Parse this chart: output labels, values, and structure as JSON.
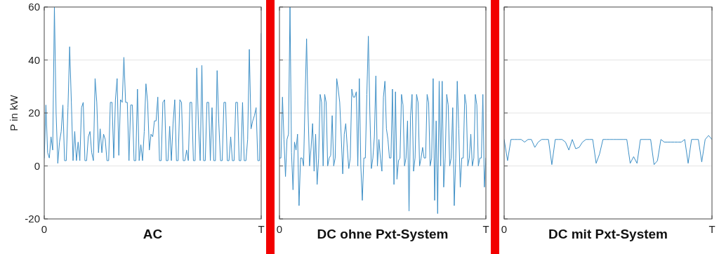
{
  "chart_data": [
    {
      "type": "line",
      "ylabel": "P in kW",
      "xlabel": "AC",
      "ylim": [
        -20,
        60
      ],
      "yticks": [
        -20,
        0,
        20,
        40,
        60
      ],
      "grid": true,
      "categories": [
        "0",
        null,
        null,
        null,
        null,
        null,
        null,
        null,
        null,
        null,
        null,
        null,
        null,
        null,
        null,
        null,
        null,
        null,
        null,
        null,
        null,
        null,
        null,
        null,
        null,
        null,
        null,
        null,
        null,
        null,
        null,
        null,
        null,
        null,
        null,
        null,
        null,
        null,
        null,
        null,
        null,
        null,
        null,
        null,
        null,
        null,
        null,
        null,
        null,
        null,
        null,
        null,
        null,
        null,
        null,
        null,
        null,
        null,
        null,
        null,
        null,
        null,
        null,
        null,
        null,
        null,
        null,
        null,
        null,
        null,
        null,
        null,
        null,
        null,
        null,
        null,
        null,
        null,
        null,
        null,
        null,
        null,
        null,
        null,
        null,
        null,
        null,
        null,
        null,
        null,
        null,
        null,
        null,
        null,
        null,
        null,
        null,
        null,
        null,
        null,
        null,
        null,
        null,
        null,
        null,
        null,
        null,
        null,
        null,
        null,
        null,
        null,
        null,
        null,
        null,
        null,
        null,
        null,
        null,
        null,
        null,
        null,
        null,
        null,
        null,
        null,
        null,
        null,
        "T"
      ],
      "series": [
        {
          "color": "#3d8fc6",
          "values": [
            3,
            23,
            5,
            3,
            11,
            6,
            60,
            20,
            1,
            9,
            13,
            23,
            2,
            2,
            22,
            45,
            24,
            2,
            13,
            2,
            9,
            2,
            22,
            24,
            2,
            2,
            11,
            13,
            5,
            2,
            33,
            24,
            5,
            14,
            5,
            12,
            10,
            2,
            2,
            24,
            24,
            3,
            25,
            33,
            4,
            25,
            24,
            41,
            24,
            24,
            2,
            23,
            23,
            2,
            2,
            29,
            2,
            8,
            2,
            13,
            31,
            24,
            6,
            12,
            11,
            17,
            17,
            26,
            2,
            2,
            24,
            25,
            2,
            2,
            15,
            2,
            16,
            25,
            2,
            2,
            25,
            24,
            2,
            2,
            6,
            2,
            24,
            24,
            2,
            2,
            37,
            15,
            2,
            38,
            2,
            2,
            24,
            24,
            2,
            22,
            2,
            2,
            36,
            16,
            2,
            2,
            24,
            24,
            2,
            2,
            11,
            2,
            2,
            24,
            24,
            2,
            2,
            24,
            2,
            2,
            10,
            44,
            14,
            17,
            19,
            22,
            2,
            2,
            50
          ]
        }
      ]
    },
    {
      "type": "line",
      "xlabel": "DC ohne Pxt-System",
      "ylim": [
        -20,
        60
      ],
      "yticks": [
        -20,
        0,
        20,
        40,
        60
      ],
      "grid": true,
      "tick_labels": "x",
      "categories": [
        "0",
        null,
        null,
        null,
        null,
        null,
        null,
        null,
        null,
        null,
        null,
        null,
        null,
        null,
        null,
        null,
        null,
        null,
        null,
        null,
        null,
        null,
        null,
        null,
        null,
        null,
        null,
        null,
        null,
        null,
        null,
        null,
        null,
        null,
        null,
        null,
        null,
        null,
        null,
        null,
        null,
        null,
        null,
        null,
        null,
        null,
        null,
        null,
        null,
        null,
        null,
        null,
        null,
        null,
        null,
        null,
        null,
        null,
        null,
        null,
        null,
        null,
        null,
        null,
        null,
        null,
        null,
        null,
        null,
        null,
        null,
        null,
        null,
        null,
        null,
        null,
        null,
        null,
        null,
        null,
        null,
        null,
        null,
        null,
        null,
        null,
        null,
        null,
        null,
        null,
        null,
        null,
        null,
        null,
        null,
        null,
        null,
        null,
        null,
        null,
        null,
        null,
        null,
        null,
        null,
        null,
        null,
        null,
        null,
        null,
        null,
        null,
        null,
        null,
        null,
        null,
        null,
        null,
        null,
        null,
        null,
        null,
        null,
        null,
        null,
        null,
        null,
        null,
        null,
        null,
        null,
        null,
        null,
        null,
        null,
        null,
        null,
        "T"
      ],
      "series": [
        {
          "color": "#3d8fc6",
          "values": [
            3,
            3,
            26,
            10,
            -4,
            10,
            12,
            60,
            5,
            -9,
            9,
            6,
            12,
            -15,
            3,
            3,
            0,
            25,
            48,
            20,
            0,
            7,
            16,
            -2,
            12,
            -7,
            3,
            27,
            24,
            0,
            27,
            24,
            0,
            3,
            4,
            19,
            0,
            3,
            33,
            29,
            24,
            11,
            -3,
            12,
            16,
            7,
            -1,
            3,
            29,
            26,
            26,
            28,
            0,
            33,
            0,
            -13,
            3,
            3,
            27,
            49,
            20,
            -1,
            3,
            11,
            34,
            0,
            10,
            3,
            -2,
            26,
            32,
            14,
            10,
            3,
            3,
            29,
            -7,
            28,
            -5,
            2,
            3,
            27,
            23,
            0,
            3,
            17,
            -17,
            19,
            27,
            -2,
            3,
            27,
            24,
            0,
            3,
            7,
            3,
            3,
            27,
            24,
            0,
            3,
            33,
            -13,
            17,
            -18,
            32,
            0,
            32,
            -8,
            3,
            27,
            23,
            0,
            3,
            22,
            -15,
            3,
            32,
            14,
            -8,
            3,
            3,
            27,
            23,
            0,
            3,
            12,
            0,
            3,
            27,
            23,
            0,
            3,
            3,
            27,
            -8,
            3
          ]
        }
      ]
    },
    {
      "type": "line",
      "xlabel": "DC mit Pxt-System",
      "ylim": [
        -20,
        60
      ],
      "yticks": [
        -20,
        0,
        20,
        40,
        60
      ],
      "grid": true,
      "tick_labels": "x",
      "categories": [
        "0",
        null,
        null,
        null,
        null,
        null,
        null,
        null,
        null,
        null,
        null,
        null,
        null,
        null,
        null,
        null,
        null,
        null,
        null,
        null,
        null,
        null,
        null,
        null,
        null,
        null,
        null,
        null,
        null,
        null,
        null,
        null,
        null,
        null,
        null,
        null,
        null,
        null,
        null,
        null,
        null,
        null,
        null,
        null,
        null,
        null,
        null,
        null,
        null,
        null,
        null,
        null,
        null,
        null,
        null,
        null,
        null,
        null,
        null,
        null,
        null,
        "T"
      ],
      "series": [
        {
          "color": "#3d8fc6",
          "values": [
            10,
            2,
            10,
            10,
            10,
            10,
            9,
            10,
            10,
            7,
            9,
            10,
            10,
            10,
            0.5,
            10,
            10,
            10,
            9,
            6,
            10,
            6.5,
            7,
            9,
            10,
            10,
            10,
            1,
            4.5,
            10,
            10,
            10,
            10,
            10,
            10,
            10,
            10,
            1,
            3.5,
            1,
            10,
            10,
            10,
            10,
            0.5,
            2,
            10,
            9,
            9,
            9,
            9,
            9,
            9,
            10,
            1,
            10,
            10,
            10,
            1.5,
            10,
            11.5,
            10
          ]
        }
      ]
    }
  ]
}
